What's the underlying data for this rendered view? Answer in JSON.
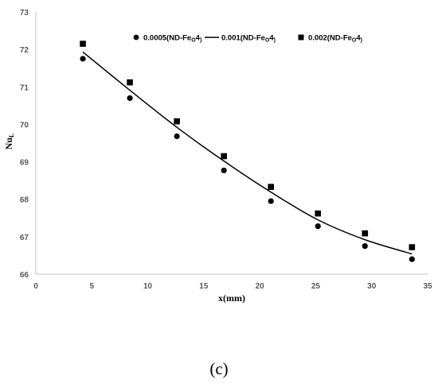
{
  "caption": "(c)",
  "chart_data": {
    "type": "scatter",
    "title": "",
    "xlabel": "x(mm)",
    "ylabel": "NuL",
    "xlim": [
      0,
      35
    ],
    "ylim": [
      66,
      73
    ],
    "x_ticks": [
      0,
      5,
      10,
      15,
      20,
      25,
      30,
      35
    ],
    "y_ticks": [
      66,
      67,
      68,
      69,
      70,
      71,
      72,
      73
    ],
    "grid": false,
    "legend_position": "top-right",
    "series": [
      {
        "name": "0.0005(ND-Fe3O4)",
        "legend_prefix": "0.0005(ND-Fe",
        "marker": "circle",
        "color": "#000000",
        "x": [
          4.2,
          8.4,
          12.6,
          16.8,
          21.0,
          25.2,
          29.4,
          33.6
        ],
        "y": [
          71.75,
          70.7,
          69.68,
          68.77,
          67.95,
          67.28,
          66.75,
          66.4
        ]
      },
      {
        "name": "0.001(ND-Fe3O4)",
        "legend_prefix": "0.001(ND-Fe",
        "marker": "line",
        "color": "#000000",
        "x": [
          4.2,
          8.4,
          12.6,
          16.8,
          21.0,
          25.2,
          29.4,
          33.6
        ],
        "y": [
          71.93,
          70.91,
          69.92,
          69.02,
          68.19,
          67.45,
          66.92,
          66.54
        ]
      },
      {
        "name": "0.002(ND-Fe3O4)",
        "legend_prefix": "0.002(ND-Fe",
        "marker": "square",
        "color": "#000000",
        "x": [
          4.2,
          8.4,
          12.6,
          16.8,
          21.0,
          25.2,
          29.4,
          33.6
        ],
        "y": [
          72.15,
          71.12,
          70.08,
          69.15,
          68.33,
          67.62,
          67.09,
          66.72
        ]
      }
    ]
  }
}
